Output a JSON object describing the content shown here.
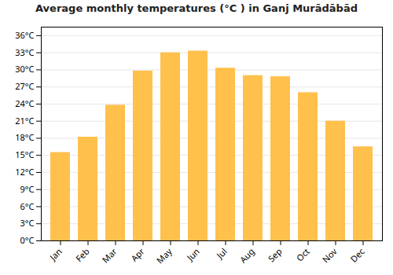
{
  "chart_data": {
    "type": "bar",
    "title": "Average monthly temperatures (°C ) in Ganj Murādābād",
    "categories": [
      "Jan",
      "Feb",
      "Mar",
      "Apr",
      "May",
      "Jun",
      "Jul",
      "Aug",
      "Sep",
      "Oct",
      "Nov",
      "Dec"
    ],
    "values": [
      15.5,
      18.2,
      23.8,
      29.8,
      33.0,
      33.3,
      30.3,
      29.0,
      28.8,
      26.0,
      21.0,
      16.5
    ],
    "color": "#FFC04C",
    "ylim": [
      0,
      37.5
    ],
    "yticks": [
      {
        "value": 0,
        "label": "0°C"
      },
      {
        "value": 3,
        "label": "3°C"
      },
      {
        "value": 6,
        "label": "6°C"
      },
      {
        "value": 9,
        "label": "9°C"
      },
      {
        "value": 12,
        "label": "12°C"
      },
      {
        "value": 15,
        "label": "15°C"
      },
      {
        "value": 18,
        "label": "18°C"
      },
      {
        "value": 21,
        "label": "21°C"
      },
      {
        "value": 24,
        "label": "24°C"
      },
      {
        "value": 27,
        "label": "27°C"
      },
      {
        "value": 30,
        "label": "30°C"
      },
      {
        "value": 33,
        "label": "33°C"
      },
      {
        "value": 36,
        "label": "36°C"
      }
    ],
    "grid": true
  }
}
